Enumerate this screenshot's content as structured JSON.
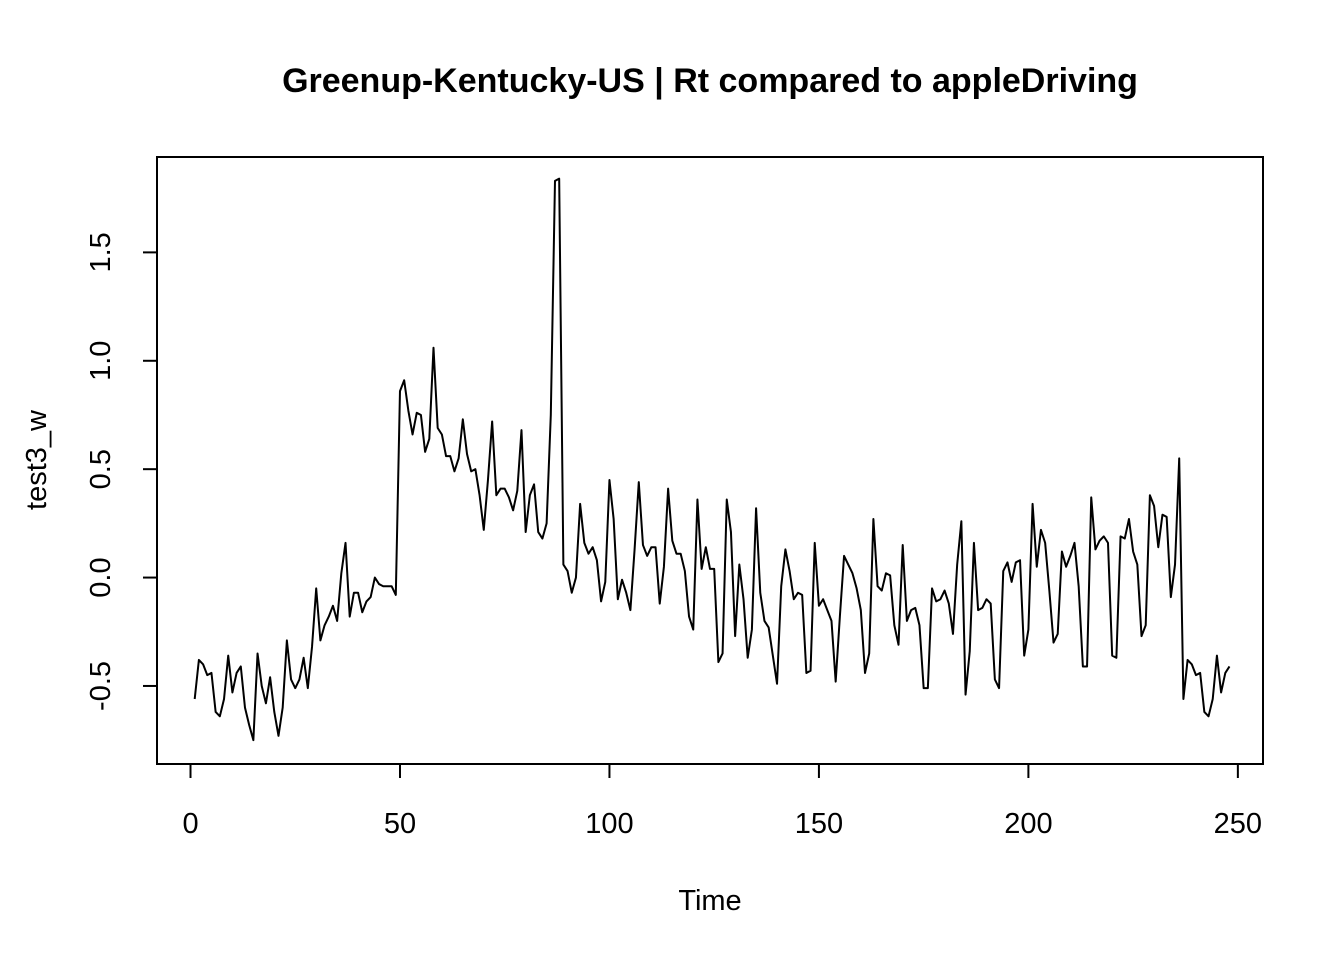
{
  "chart_data": {
    "type": "line",
    "title": "Greenup-Kentucky-US | Rt compared to appleDriving",
    "xlabel": "Time",
    "ylabel": "test3_w",
    "xlim": [
      -8,
      256
    ],
    "ylim": [
      -0.86,
      1.94
    ],
    "x_ticks": [
      0,
      50,
      100,
      150,
      200,
      250
    ],
    "x_tick_labels": [
      "0",
      "50",
      "100",
      "150",
      "200",
      "250"
    ],
    "y_ticks": [
      -0.5,
      0.0,
      0.5,
      1.0,
      1.5
    ],
    "y_tick_labels": [
      "-0.5",
      "0.0",
      "0.5",
      "1.0",
      "1.5"
    ],
    "grid": false,
    "x_start": 1,
    "line_color": "#000000",
    "series": [
      {
        "values": [
          -0.56,
          -0.38,
          -0.4,
          -0.45,
          -0.44,
          -0.62,
          -0.64,
          -0.56,
          -0.36,
          -0.53,
          -0.44,
          -0.41,
          -0.6,
          -0.68,
          -0.75,
          -0.35,
          -0.5,
          -0.58,
          -0.46,
          -0.62,
          -0.73,
          -0.6,
          -0.29,
          -0.47,
          -0.51,
          -0.47,
          -0.37,
          -0.51,
          -0.32,
          -0.05,
          -0.29,
          -0.22,
          -0.18,
          -0.13,
          -0.2,
          0.02,
          0.16,
          -0.18,
          -0.07,
          -0.07,
          -0.16,
          -0.11,
          -0.09,
          0.0,
          -0.03,
          -0.04,
          -0.04,
          -0.04,
          -0.08,
          0.86,
          0.91,
          0.77,
          0.66,
          0.76,
          0.75,
          0.58,
          0.64,
          1.06,
          0.69,
          0.66,
          0.56,
          0.56,
          0.49,
          0.55,
          0.73,
          0.57,
          0.49,
          0.5,
          0.38,
          0.22,
          0.45,
          0.72,
          0.38,
          0.41,
          0.41,
          0.37,
          0.31,
          0.4,
          0.68,
          0.21,
          0.38,
          0.43,
          0.21,
          0.18,
          0.25,
          0.75,
          1.83,
          1.84,
          0.06,
          0.03,
          -0.07,
          0.0,
          0.34,
          0.16,
          0.11,
          0.14,
          0.08,
          -0.11,
          -0.02,
          0.45,
          0.27,
          -0.1,
          -0.01,
          -0.07,
          -0.15,
          0.13,
          0.44,
          0.15,
          0.1,
          0.14,
          0.14,
          -0.12,
          0.05,
          0.41,
          0.17,
          0.11,
          0.11,
          0.03,
          -0.18,
          -0.24,
          0.36,
          0.04,
          0.14,
          0.04,
          0.04,
          -0.39,
          -0.35,
          0.36,
          0.21,
          -0.27,
          0.06,
          -0.1,
          -0.37,
          -0.24,
          0.32,
          -0.07,
          -0.2,
          -0.23,
          -0.36,
          -0.49,
          -0.04,
          0.13,
          0.03,
          -0.1,
          -0.07,
          -0.08,
          -0.44,
          -0.43,
          0.16,
          -0.13,
          -0.1,
          -0.15,
          -0.2,
          -0.48,
          -0.18,
          0.1,
          0.06,
          0.02,
          -0.05,
          -0.15,
          -0.44,
          -0.35,
          0.27,
          -0.04,
          -0.06,
          0.02,
          0.01,
          -0.22,
          -0.31,
          0.15,
          -0.2,
          -0.15,
          -0.14,
          -0.22,
          -0.51,
          -0.51,
          -0.05,
          -0.11,
          -0.1,
          -0.06,
          -0.12,
          -0.26,
          0.06,
          0.26,
          -0.54,
          -0.34,
          0.16,
          -0.15,
          -0.14,
          -0.1,
          -0.12,
          -0.47,
          -0.51,
          0.03,
          0.07,
          -0.02,
          0.07,
          0.08,
          -0.36,
          -0.24,
          0.34,
          0.05,
          0.22,
          0.16,
          -0.06,
          -0.3,
          -0.26,
          0.12,
          0.05,
          0.1,
          0.16,
          -0.04,
          -0.41,
          -0.41,
          0.37,
          0.13,
          0.17,
          0.19,
          0.16,
          -0.36,
          -0.37,
          0.19,
          0.18,
          0.27,
          0.12,
          0.06,
          -0.27,
          -0.22,
          0.38,
          0.33,
          0.14,
          0.29,
          0.28,
          -0.09,
          0.06,
          0.55,
          -0.56,
          -0.38,
          -0.4,
          -0.45,
          -0.44,
          -0.62,
          -0.64,
          -0.56,
          -0.36,
          -0.53,
          -0.44,
          -0.41
        ]
      }
    ]
  }
}
